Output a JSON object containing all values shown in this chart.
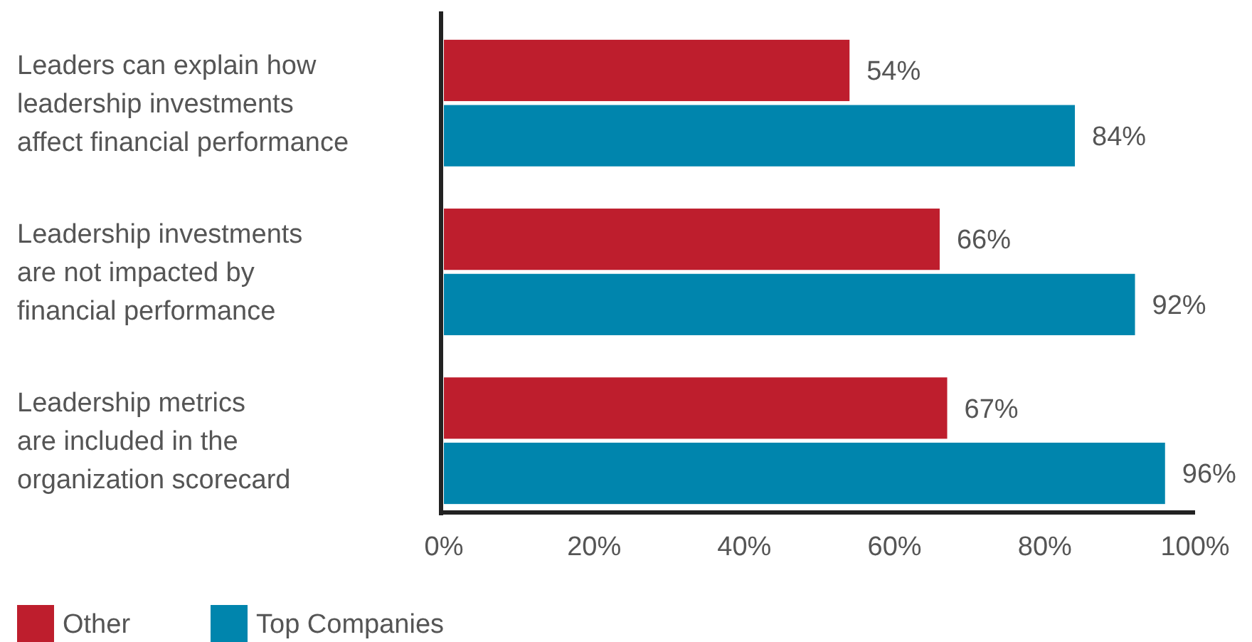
{
  "chart_data": {
    "type": "bar",
    "orientation": "horizontal",
    "categories": [
      "Leaders can explain how\nleadership investments\naffect financial performance",
      "Leadership investments\nare not impacted by\nfinancial performance",
      "Leadership metrics\nare included in the\norganization scorecard"
    ],
    "series": [
      {
        "name": "Other",
        "color": "#be1e2d",
        "values": [
          54,
          66,
          67
        ],
        "value_labels": [
          "54%",
          "66%",
          "67%"
        ]
      },
      {
        "name": "Top Companies",
        "color": "#0085ad",
        "values": [
          84,
          92,
          96
        ],
        "value_labels": [
          "84%",
          "92%",
          "96%"
        ]
      }
    ],
    "xlim": [
      0,
      100
    ],
    "xticks": [
      {
        "value": 0,
        "label": "0%"
      },
      {
        "value": 20,
        "label": "20%"
      },
      {
        "value": 40,
        "label": "40%"
      },
      {
        "value": 60,
        "label": "60%"
      },
      {
        "value": 80,
        "label": "80%"
      },
      {
        "value": 100,
        "label": "100%"
      }
    ],
    "legend": "bottom left",
    "grid": false
  }
}
